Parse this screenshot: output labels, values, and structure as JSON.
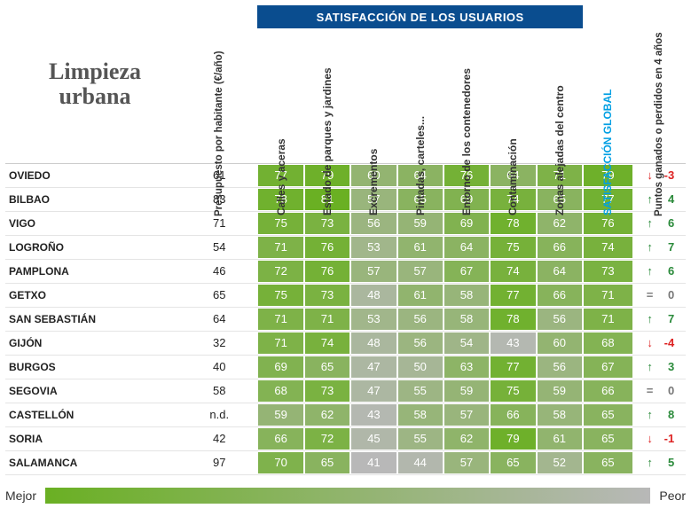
{
  "title_line1": "Limpieza",
  "title_line2": "urbana",
  "banner": "SATISFACCIÓN DE LOS USUARIOS",
  "headers": {
    "budget": "Presupuesto por habitante (€/año)",
    "sat": [
      "Calles y aceras",
      "Estado de parques y jardines",
      "Excrementos",
      "Pintadas, carteles...",
      "Entorno de los contenedores",
      "Contaminación",
      "Zonas alejadas del centro"
    ],
    "global": "SATISFACCIÓN GLOBAL",
    "points": "Puntos ganados o perdidos en 4 años"
  },
  "heatmap": {
    "min_value": 41,
    "max_value": 81,
    "color_best": "#6ab023",
    "color_worst": "#b8b8b8"
  },
  "colors": {
    "banner_bg": "#0a4d8f",
    "global_header": "#009fe3",
    "up": "#2a8a3a",
    "down": "#d22",
    "eq": "#777777"
  },
  "legend": {
    "best": "Mejor",
    "worst": "Peor"
  },
  "rows": [
    {
      "city": "OVIEDO",
      "budget": "61",
      "sat": [
        77,
        79,
        60,
        64,
        76,
        64,
        71
      ],
      "global": 79,
      "dir": "down",
      "pts": "-3"
    },
    {
      "city": "BILBAO",
      "budget": "83",
      "sat": [
        78,
        81,
        57,
        65,
        69,
        74,
        65
      ],
      "global": 77,
      "dir": "up",
      "pts": "4"
    },
    {
      "city": "VIGO",
      "budget": "71",
      "sat": [
        75,
        73,
        56,
        59,
        69,
        78,
        62
      ],
      "global": 76,
      "dir": "up",
      "pts": "6"
    },
    {
      "city": "LOGROÑO",
      "budget": "54",
      "sat": [
        71,
        76,
        53,
        61,
        64,
        75,
        66
      ],
      "global": 74,
      "dir": "up",
      "pts": "7"
    },
    {
      "city": "PAMPLONA",
      "budget": "46",
      "sat": [
        72,
        76,
        57,
        57,
        67,
        74,
        64
      ],
      "global": 73,
      "dir": "up",
      "pts": "6"
    },
    {
      "city": "GETXO",
      "budget": "65",
      "sat": [
        75,
        73,
        48,
        61,
        58,
        77,
        66
      ],
      "global": 71,
      "dir": "eq",
      "pts": "0"
    },
    {
      "city": "SAN SEBASTIÁN",
      "budget": "64",
      "sat": [
        71,
        71,
        53,
        56,
        58,
        78,
        56
      ],
      "global": 71,
      "dir": "up",
      "pts": "7"
    },
    {
      "city": "GIJÓN",
      "budget": "32",
      "sat": [
        71,
        74,
        48,
        56,
        54,
        43,
        60
      ],
      "global": 68,
      "dir": "down",
      "pts": "-4"
    },
    {
      "city": "BURGOS",
      "budget": "40",
      "sat": [
        69,
        65,
        47,
        50,
        63,
        77,
        56
      ],
      "global": 67,
      "dir": "up",
      "pts": "3"
    },
    {
      "city": "SEGOVIA",
      "budget": "58",
      "sat": [
        68,
        73,
        47,
        55,
        59,
        75,
        59
      ],
      "global": 66,
      "dir": "eq",
      "pts": "0"
    },
    {
      "city": "CASTELLÓN",
      "budget": "n.d.",
      "sat": [
        59,
        62,
        43,
        58,
        57,
        66,
        58
      ],
      "global": 65,
      "dir": "up",
      "pts": "8"
    },
    {
      "city": "SORIA",
      "budget": "42",
      "sat": [
        66,
        72,
        45,
        55,
        62,
        79,
        61
      ],
      "global": 65,
      "dir": "down",
      "pts": "-1"
    },
    {
      "city": "SALAMANCA",
      "budget": "97",
      "sat": [
        70,
        65,
        41,
        44,
        57,
        65,
        52
      ],
      "global": 65,
      "dir": "up",
      "pts": "5"
    }
  ]
}
